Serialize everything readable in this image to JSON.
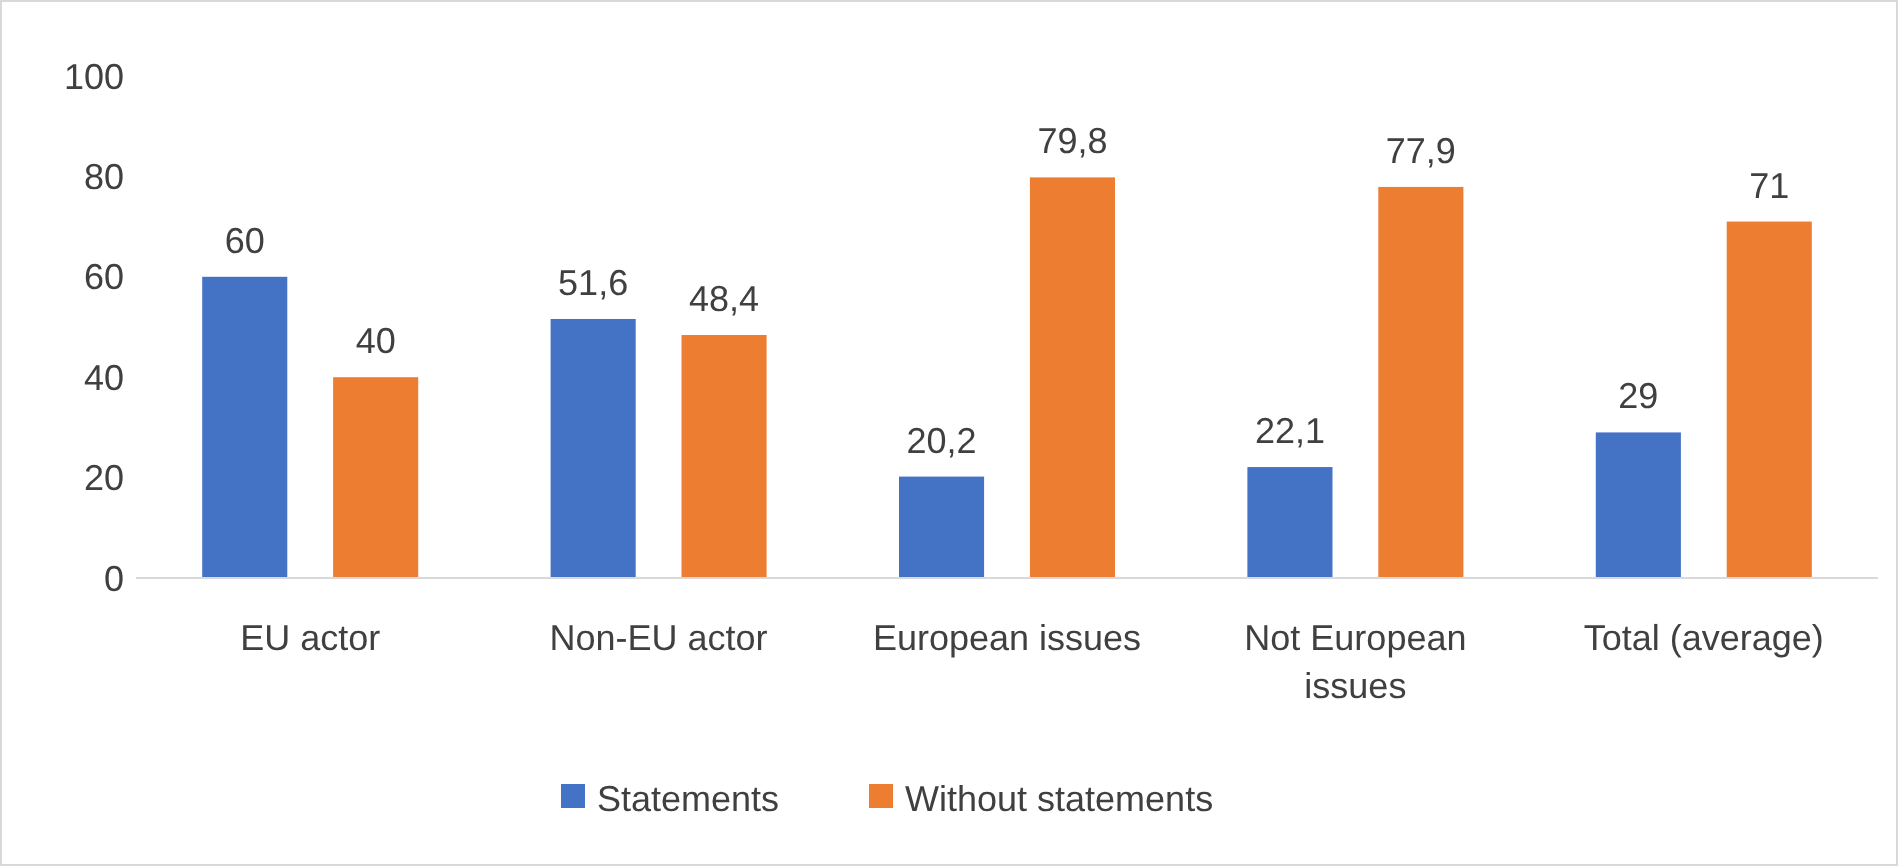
{
  "chart_data": {
    "type": "bar",
    "categories": [
      "EU actor",
      "Non-EU actor",
      "European issues",
      "Not European issues",
      "Total (average)"
    ],
    "series": [
      {
        "name": "Statements",
        "color": "#4472c4",
        "values": [
          60,
          51.6,
          20.2,
          22.1,
          29
        ],
        "value_labels": [
          "60",
          "51,6",
          "20,2",
          "22,1",
          "29"
        ]
      },
      {
        "name": "Without statements",
        "color": "#ed7d31",
        "values": [
          40,
          48.4,
          79.8,
          77.9,
          71
        ],
        "value_labels": [
          "40",
          "48,4",
          "79,8",
          "77,9",
          "71"
        ]
      }
    ],
    "ylim": [
      0,
      100
    ],
    "yticks": [
      0,
      20,
      40,
      60,
      80,
      100
    ],
    "grid": false,
    "legend": "bottom"
  }
}
